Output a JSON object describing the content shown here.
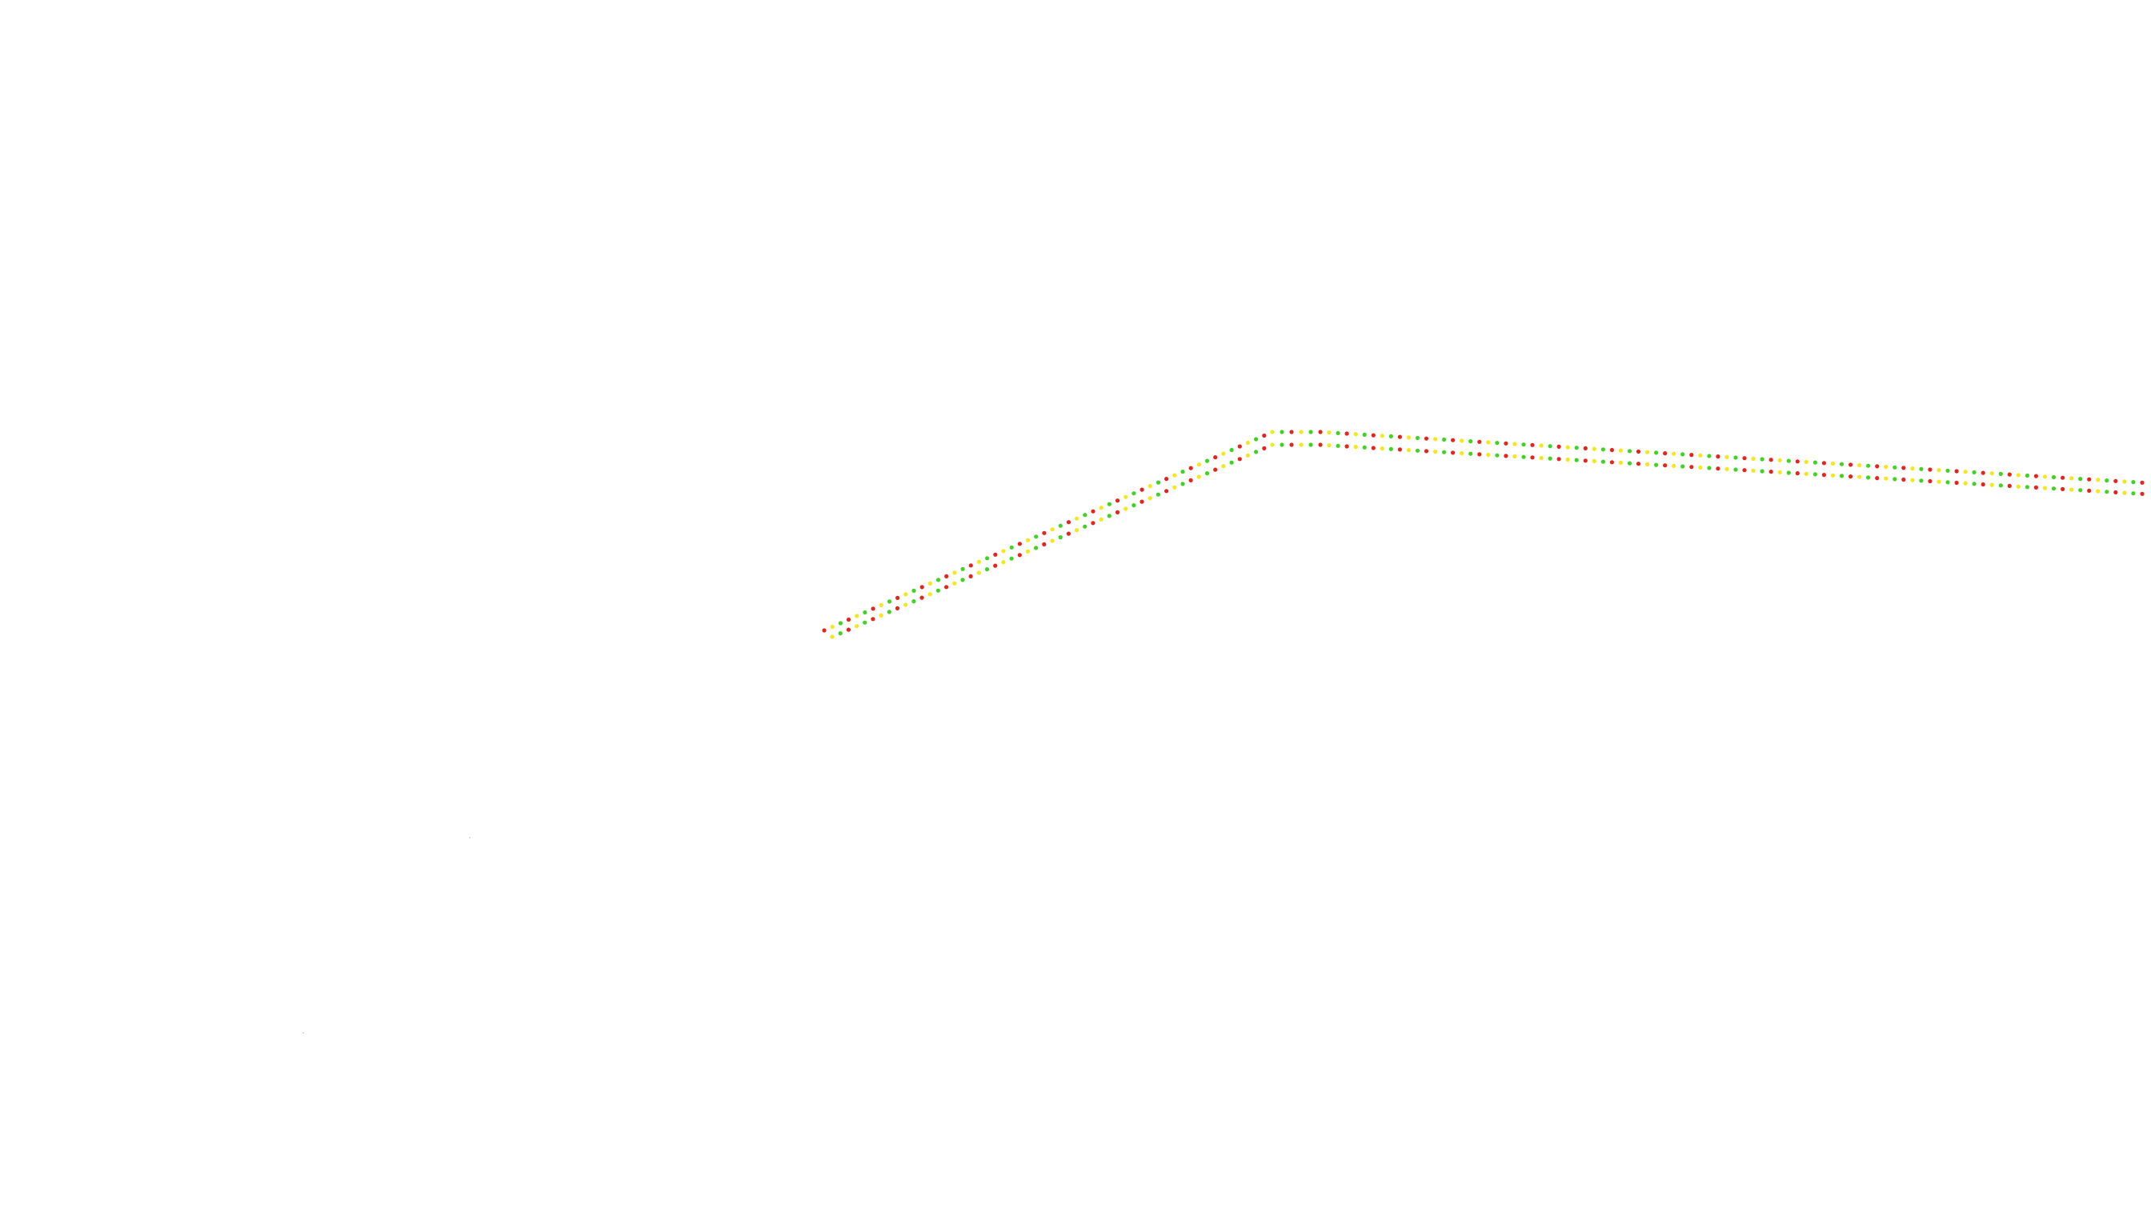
{
  "map": {
    "background_color": "#ffffff",
    "route": {
      "description_colors": {
        "traffic_slow": "#e8231c",
        "traffic_moderate": "#f2e81a",
        "traffic_free": "#3fd422"
      },
      "dot_sequence": [
        "traffic_slow",
        "traffic_moderate",
        "traffic_free"
      ]
    }
  }
}
